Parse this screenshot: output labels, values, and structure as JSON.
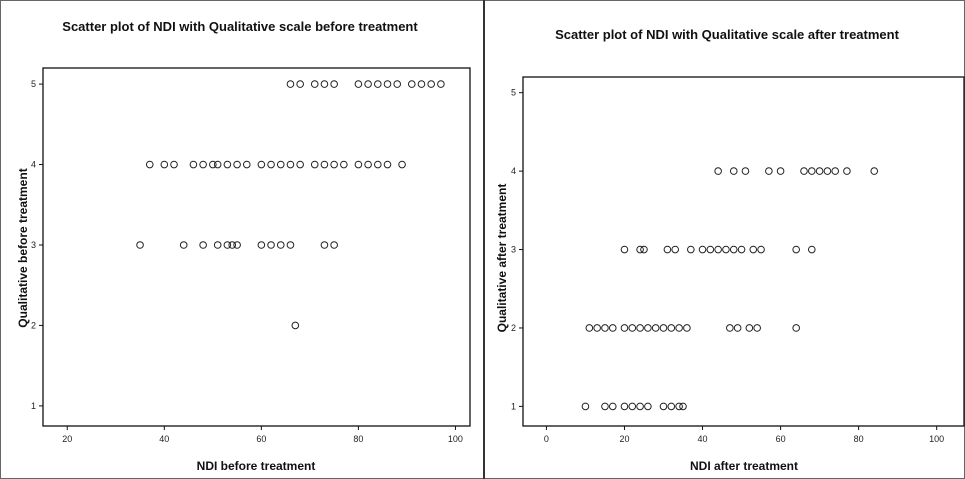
{
  "chart_data": [
    {
      "type": "scatter",
      "title": "Scatter plot of NDI with Qualitative scale before treatment",
      "xlabel": "NDI before treatment",
      "ylabel": "Qualitative before treatment",
      "xlim": [
        15,
        103
      ],
      "ylim": [
        0.75,
        5.2
      ],
      "xticks": [
        "20",
        "40",
        "60",
        "80",
        "100"
      ],
      "yticks": [
        "1",
        "2",
        "3",
        "4",
        "5"
      ],
      "grid": false,
      "points": [
        {
          "x": 66,
          "y": 5
        },
        {
          "x": 68,
          "y": 5
        },
        {
          "x": 71,
          "y": 5
        },
        {
          "x": 73,
          "y": 5
        },
        {
          "x": 75,
          "y": 5
        },
        {
          "x": 80,
          "y": 5
        },
        {
          "x": 82,
          "y": 5
        },
        {
          "x": 84,
          "y": 5
        },
        {
          "x": 86,
          "y": 5
        },
        {
          "x": 88,
          "y": 5
        },
        {
          "x": 91,
          "y": 5
        },
        {
          "x": 93,
          "y": 5
        },
        {
          "x": 95,
          "y": 5
        },
        {
          "x": 97,
          "y": 5
        },
        {
          "x": 37,
          "y": 4
        },
        {
          "x": 40,
          "y": 4
        },
        {
          "x": 42,
          "y": 4
        },
        {
          "x": 46,
          "y": 4
        },
        {
          "x": 48,
          "y": 4
        },
        {
          "x": 50,
          "y": 4
        },
        {
          "x": 51,
          "y": 4
        },
        {
          "x": 53,
          "y": 4
        },
        {
          "x": 55,
          "y": 4
        },
        {
          "x": 57,
          "y": 4
        },
        {
          "x": 60,
          "y": 4
        },
        {
          "x": 62,
          "y": 4
        },
        {
          "x": 64,
          "y": 4
        },
        {
          "x": 66,
          "y": 4
        },
        {
          "x": 68,
          "y": 4
        },
        {
          "x": 71,
          "y": 4
        },
        {
          "x": 73,
          "y": 4
        },
        {
          "x": 75,
          "y": 4
        },
        {
          "x": 77,
          "y": 4
        },
        {
          "x": 80,
          "y": 4
        },
        {
          "x": 82,
          "y": 4
        },
        {
          "x": 84,
          "y": 4
        },
        {
          "x": 86,
          "y": 4
        },
        {
          "x": 89,
          "y": 4
        },
        {
          "x": 35,
          "y": 3
        },
        {
          "x": 44,
          "y": 3
        },
        {
          "x": 48,
          "y": 3
        },
        {
          "x": 51,
          "y": 3
        },
        {
          "x": 53,
          "y": 3
        },
        {
          "x": 54,
          "y": 3
        },
        {
          "x": 55,
          "y": 3
        },
        {
          "x": 60,
          "y": 3
        },
        {
          "x": 62,
          "y": 3
        },
        {
          "x": 64,
          "y": 3
        },
        {
          "x": 66,
          "y": 3
        },
        {
          "x": 73,
          "y": 3
        },
        {
          "x": 75,
          "y": 3
        },
        {
          "x": 67,
          "y": 2
        }
      ]
    },
    {
      "type": "scatter",
      "title": "Scatter plot of NDI with Qualitative scale after treatment",
      "xlabel": "NDI after treatment",
      "ylabel": "Qualitative after treatment",
      "xlim": [
        -6,
        107
      ],
      "ylim": [
        0.75,
        5.2
      ],
      "xticks": [
        "0",
        "20",
        "40",
        "60",
        "80",
        "100"
      ],
      "yticks": [
        "1",
        "2",
        "3",
        "4",
        "5"
      ],
      "grid": false,
      "points": [
        {
          "x": 44,
          "y": 4
        },
        {
          "x": 48,
          "y": 4
        },
        {
          "x": 51,
          "y": 4
        },
        {
          "x": 57,
          "y": 4
        },
        {
          "x": 60,
          "y": 4
        },
        {
          "x": 66,
          "y": 4
        },
        {
          "x": 68,
          "y": 4
        },
        {
          "x": 70,
          "y": 4
        },
        {
          "x": 72,
          "y": 4
        },
        {
          "x": 74,
          "y": 4
        },
        {
          "x": 77,
          "y": 4
        },
        {
          "x": 84,
          "y": 4
        },
        {
          "x": 20,
          "y": 3
        },
        {
          "x": 24,
          "y": 3
        },
        {
          "x": 25,
          "y": 3
        },
        {
          "x": 31,
          "y": 3
        },
        {
          "x": 33,
          "y": 3
        },
        {
          "x": 37,
          "y": 3
        },
        {
          "x": 40,
          "y": 3
        },
        {
          "x": 42,
          "y": 3
        },
        {
          "x": 44,
          "y": 3
        },
        {
          "x": 46,
          "y": 3
        },
        {
          "x": 48,
          "y": 3
        },
        {
          "x": 50,
          "y": 3
        },
        {
          "x": 53,
          "y": 3
        },
        {
          "x": 55,
          "y": 3
        },
        {
          "x": 64,
          "y": 3
        },
        {
          "x": 68,
          "y": 3
        },
        {
          "x": 11,
          "y": 2
        },
        {
          "x": 13,
          "y": 2
        },
        {
          "x": 15,
          "y": 2
        },
        {
          "x": 17,
          "y": 2
        },
        {
          "x": 20,
          "y": 2
        },
        {
          "x": 22,
          "y": 2
        },
        {
          "x": 24,
          "y": 2
        },
        {
          "x": 26,
          "y": 2
        },
        {
          "x": 28,
          "y": 2
        },
        {
          "x": 30,
          "y": 2
        },
        {
          "x": 32,
          "y": 2
        },
        {
          "x": 34,
          "y": 2
        },
        {
          "x": 36,
          "y": 2
        },
        {
          "x": 47,
          "y": 2
        },
        {
          "x": 49,
          "y": 2
        },
        {
          "x": 52,
          "y": 2
        },
        {
          "x": 54,
          "y": 2
        },
        {
          "x": 64,
          "y": 2
        },
        {
          "x": 10,
          "y": 1
        },
        {
          "x": 15,
          "y": 1
        },
        {
          "x": 17,
          "y": 1
        },
        {
          "x": 20,
          "y": 1
        },
        {
          "x": 22,
          "y": 1
        },
        {
          "x": 24,
          "y": 1
        },
        {
          "x": 26,
          "y": 1
        },
        {
          "x": 30,
          "y": 1
        },
        {
          "x": 32,
          "y": 1
        },
        {
          "x": 34,
          "y": 1
        },
        {
          "x": 35,
          "y": 1
        }
      ]
    }
  ]
}
